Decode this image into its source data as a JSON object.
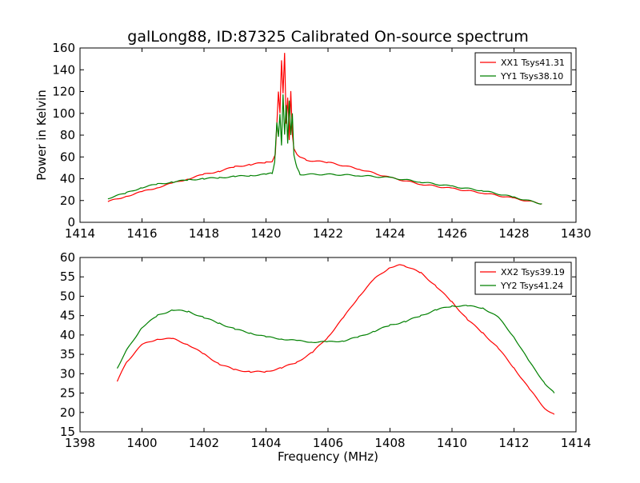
{
  "figure": {
    "title": "galLong88, ID:87325 Calibrated On-source spectrum",
    "ylabel": "Power in Kelvin",
    "xlabel": "Frequency (MHz)"
  },
  "chart_data": [
    {
      "type": "line",
      "title": "galLong88, ID:87325 Calibrated On-source spectrum",
      "xlabel": "",
      "ylabel": "Power in Kelvin",
      "xlim": [
        1414,
        1430
      ],
      "ylim": [
        0,
        160
      ],
      "xticks": [
        "1414",
        "1416",
        "1418",
        "1420",
        "1422",
        "1424",
        "1426",
        "1428",
        "1430"
      ],
      "yticks": [
        "0",
        "20",
        "40",
        "60",
        "80",
        "100",
        "120",
        "140",
        "160"
      ],
      "grid": false,
      "legend": "top-right",
      "series": [
        {
          "name": "XX1 Tsys41.31",
          "color": "#ff0000",
          "x": [
            1414.9,
            1415.5,
            1416.0,
            1416.5,
            1417.0,
            1417.5,
            1418.0,
            1418.5,
            1419.0,
            1419.5,
            1420.0,
            1420.2,
            1420.3,
            1420.35,
            1420.4,
            1420.45,
            1420.5,
            1420.55,
            1420.6,
            1420.65,
            1420.7,
            1420.75,
            1420.8,
            1420.85,
            1420.9,
            1421.0,
            1421.1,
            1421.3,
            1422.0,
            1423.0,
            1424.0,
            1425.0,
            1426.0,
            1427.0,
            1428.0,
            1428.9
          ],
          "y": [
            19,
            24,
            28,
            32,
            36,
            40,
            44,
            47,
            51,
            53,
            55,
            56,
            62,
            90,
            120,
            100,
            149,
            118,
            156,
            90,
            115,
            75,
            121,
            80,
            68,
            62,
            60,
            57,
            55,
            49,
            41,
            35,
            31,
            27,
            22,
            17
          ]
        },
        {
          "name": "YY1 Tsys38.10",
          "color": "#008000",
          "x": [
            1414.9,
            1415.5,
            1416.0,
            1416.5,
            1417.0,
            1417.5,
            1418.0,
            1418.5,
            1419.0,
            1419.5,
            1420.0,
            1420.2,
            1420.28,
            1420.35,
            1420.4,
            1420.45,
            1420.5,
            1420.55,
            1420.6,
            1420.65,
            1420.7,
            1420.75,
            1420.8,
            1420.85,
            1420.9,
            1421.0,
            1421.1,
            1422.0,
            1423.0,
            1424.0,
            1425.0,
            1426.0,
            1427.0,
            1428.0,
            1428.9
          ],
          "y": [
            22,
            27,
            32,
            35,
            37,
            39,
            40,
            41,
            42,
            43,
            44,
            45,
            55,
            92,
            78,
            100,
            70,
            118,
            80,
            108,
            72,
            112,
            80,
            100,
            62,
            50,
            44,
            44,
            43,
            41,
            37,
            33,
            29,
            23,
            17
          ]
        }
      ]
    },
    {
      "type": "line",
      "title": "",
      "xlabel": "Frequency (MHz)",
      "ylabel": "",
      "xlim": [
        1398,
        1414
      ],
      "ylim": [
        15,
        60
      ],
      "xticks": [
        "1398",
        "1400",
        "1402",
        "1404",
        "1406",
        "1408",
        "1410",
        "1412",
        "1414"
      ],
      "yticks": [
        "15",
        "20",
        "25",
        "30",
        "35",
        "40",
        "45",
        "50",
        "55",
        "60"
      ],
      "grid": false,
      "legend": "top-right",
      "series": [
        {
          "name": "XX2 Tsys39.19",
          "color": "#ff0000",
          "x": [
            1399.2,
            1399.5,
            1400.0,
            1400.5,
            1401.0,
            1401.5,
            1402.0,
            1402.5,
            1403.0,
            1403.5,
            1404.0,
            1404.5,
            1405.0,
            1405.5,
            1406.0,
            1406.5,
            1407.0,
            1407.5,
            1408.0,
            1408.3,
            1408.5,
            1409.0,
            1409.5,
            1410.0,
            1410.5,
            1411.0,
            1411.5,
            1412.0,
            1412.5,
            1413.0,
            1413.3
          ],
          "y": [
            28,
            33,
            37.5,
            39,
            39,
            37.5,
            35,
            32.5,
            31,
            30.5,
            30.5,
            31.5,
            33,
            35.5,
            39.5,
            44.5,
            50,
            54.5,
            57.5,
            58,
            57.8,
            56,
            52.5,
            48.5,
            44,
            40.5,
            36.5,
            31.5,
            26,
            21,
            19.5
          ]
        },
        {
          "name": "YY2 Tsys41.24",
          "color": "#008000",
          "x": [
            1399.2,
            1399.5,
            1400.0,
            1400.5,
            1401.0,
            1401.5,
            1402.0,
            1402.5,
            1403.0,
            1403.5,
            1404.0,
            1404.5,
            1405.0,
            1405.5,
            1406.0,
            1406.5,
            1407.0,
            1407.5,
            1408.0,
            1408.5,
            1409.0,
            1409.5,
            1410.0,
            1410.5,
            1411.0,
            1411.5,
            1412.0,
            1412.5,
            1413.0,
            1413.3
          ],
          "y": [
            31.5,
            36,
            42,
            45,
            46.5,
            46,
            44.5,
            43,
            41.5,
            40.5,
            39.5,
            39,
            38.5,
            38.2,
            38.2,
            38.5,
            39.5,
            41,
            42.5,
            43.5,
            45,
            46.5,
            47.5,
            47.5,
            47,
            44.5,
            39.5,
            33,
            27.5,
            25
          ]
        }
      ]
    }
  ]
}
